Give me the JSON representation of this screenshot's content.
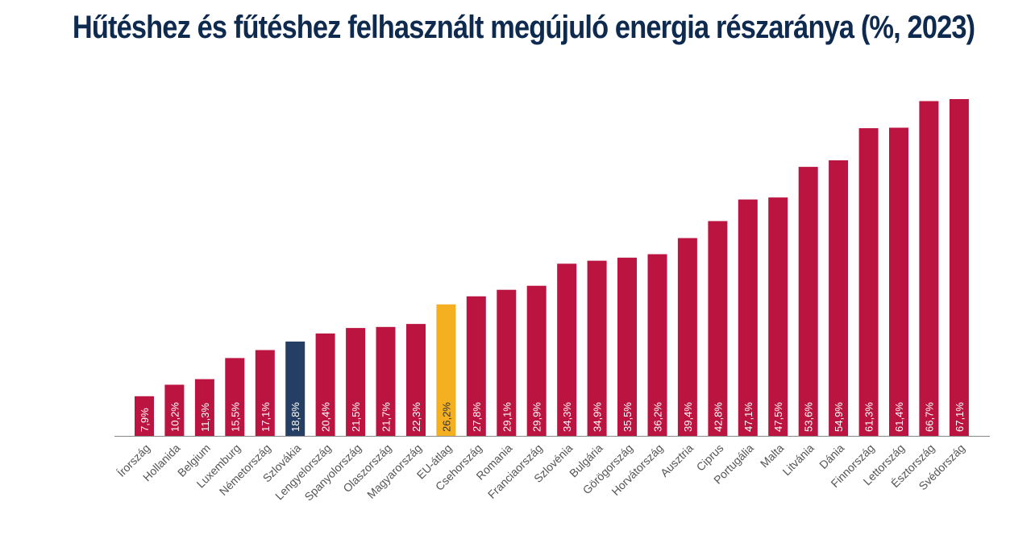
{
  "chart_data": {
    "type": "bar",
    "title": "Hűtéshez és fűtéshez felhasznált megújuló energia részaránya (%, 2023)",
    "xlabel": "",
    "ylabel": "",
    "ylim": [
      0,
      70
    ],
    "grid": false,
    "legend": "none",
    "categories": [
      "Írország",
      "Hollanida",
      "Belgium",
      "Luxemburg",
      "Németország",
      "Szlovákia",
      "Lengyelország",
      "Spanyolország",
      "Olaszország",
      "Magyarország",
      "EU-átlag",
      "Csehország",
      "Romania",
      "Franciaország",
      "Szlovénia",
      "Bulgária",
      "Görögország",
      "Horvátország",
      "Ausztria",
      "Ciprus",
      "Portugália",
      "Malta",
      "Litvánia",
      "Dánia",
      "Finnország",
      "Lettország",
      "Észtország",
      "Svédország"
    ],
    "values": [
      7.9,
      10.2,
      11.3,
      15.5,
      17.1,
      18.8,
      20.4,
      21.5,
      21.7,
      22.3,
      26.2,
      27.8,
      29.1,
      29.9,
      34.3,
      34.9,
      35.5,
      36.2,
      39.4,
      42.8,
      47.1,
      47.5,
      53.6,
      54.9,
      61.3,
      61.4,
      66.7,
      67.1
    ],
    "labels": [
      "7,9%",
      "10,2%",
      "11,3%",
      "15,5%",
      "17,1%",
      "18,8%",
      "20,4%",
      "21,5%",
      "21,7%",
      "22,3%",
      "26,2%",
      "27,8%",
      "29,1%",
      "29,9%",
      "34,3%",
      "34,9%",
      "35,5%",
      "36,2%",
      "39,4%",
      "42,8%",
      "47,1%",
      "47,5%",
      "53,6%",
      "54,9%",
      "61,3%",
      "61,4%",
      "66,7%",
      "67,1%"
    ],
    "highlight": {
      "Szlovákia": "#243f63",
      "EU-átlag": "#f5b021"
    },
    "colors": {
      "bar": "#bb1440",
      "title": "#0f2a4f",
      "axis": "#888888",
      "tick_label": "#555555",
      "data_label_on_dark": "#ffffff",
      "data_label_on_light": "#333333"
    }
  }
}
